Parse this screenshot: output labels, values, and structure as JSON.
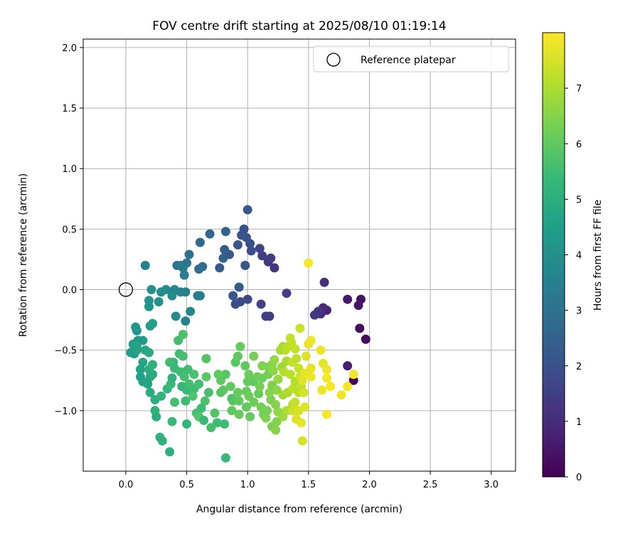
{
  "chart_data": {
    "type": "scatter",
    "title": "FOV centre drift starting at 2025/08/10 01:19:14",
    "xlabel": "Angular distance from reference (arcmin)",
    "ylabel": "Rotation from reference (arcmin)",
    "xlim": [
      -0.35,
      3.2
    ],
    "ylim": [
      -1.5,
      2.07
    ],
    "x_ticks": [
      0.0,
      0.5,
      1.0,
      1.5,
      2.0,
      2.5,
      3.0
    ],
    "x_tick_labels": [
      "0.0",
      "0.5",
      "1.0",
      "1.5",
      "2.0",
      "2.5",
      "3.0"
    ],
    "y_ticks": [
      -1.0,
      -0.5,
      0.0,
      0.5,
      1.0,
      1.5,
      2.0
    ],
    "y_tick_labels": [
      "−1.0",
      "−0.5",
      "0.0",
      "0.5",
      "1.0",
      "1.5",
      "2.0"
    ],
    "grid": true,
    "legend": {
      "position": "top-right",
      "entries": [
        "Reference platepar"
      ]
    },
    "reference_point": {
      "x": 0.0,
      "y": 0.0
    },
    "colorbar": {
      "label": "Hours from first FF file",
      "colormap": "viridis",
      "range": [
        0,
        8
      ],
      "ticks": [
        0,
        1,
        2,
        3,
        4,
        5,
        6,
        7
      ],
      "tick_labels": [
        "0",
        "1",
        "2",
        "3",
        "4",
        "5",
        "6",
        "7"
      ]
    },
    "points": [
      [
        1.87,
        -0.75,
        0.1
      ],
      [
        1.97,
        -0.41,
        0.2
      ],
      [
        1.92,
        -0.32,
        0.3
      ],
      [
        1.93,
        -0.08,
        0.4
      ],
      [
        1.91,
        -0.13,
        0.5
      ],
      [
        1.82,
        -0.08,
        0.6
      ],
      [
        1.82,
        -0.63,
        0.7
      ],
      [
        1.65,
        -0.17,
        0.8
      ],
      [
        1.62,
        -0.15,
        0.9
      ],
      [
        1.6,
        -0.2,
        1.0
      ],
      [
        1.63,
        0.06,
        1.1
      ],
      [
        1.58,
        -0.18,
        1.2
      ],
      [
        1.55,
        -0.21,
        1.3
      ],
      [
        1.18,
        -0.22,
        1.4
      ],
      [
        1.15,
        -0.22,
        1.5
      ],
      [
        1.11,
        -0.12,
        1.6
      ],
      [
        1.0,
        -0.08,
        1.7
      ],
      [
        0.94,
        -0.1,
        1.8
      ],
      [
        0.9,
        -0.12,
        1.9
      ],
      [
        1.32,
        -0.03,
        1.5
      ],
      [
        1.22,
        0.18,
        1.2
      ],
      [
        1.17,
        0.23,
        1.3
      ],
      [
        1.19,
        0.26,
        1.4
      ],
      [
        1.12,
        0.28,
        1.5
      ],
      [
        1.1,
        0.34,
        1.6
      ],
      [
        1.03,
        0.32,
        1.8
      ],
      [
        1.02,
        0.38,
        1.9
      ],
      [
        0.99,
        0.43,
        2.0
      ],
      [
        0.95,
        0.45,
        2.1
      ],
      [
        0.97,
        0.5,
        2.0
      ],
      [
        1.0,
        0.66,
        2.2
      ],
      [
        0.92,
        0.37,
        2.1
      ],
      [
        0.85,
        0.29,
        2.2
      ],
      [
        0.81,
        0.33,
        2.3
      ],
      [
        0.8,
        0.26,
        2.4
      ],
      [
        0.77,
        0.18,
        2.3
      ],
      [
        0.82,
        0.48,
        2.5
      ],
      [
        0.98,
        0.2,
        2.1
      ],
      [
        0.93,
        0.02,
        2.3
      ],
      [
        0.88,
        -0.05,
        2.2
      ],
      [
        0.69,
        0.46,
        2.6
      ],
      [
        0.61,
        0.39,
        2.7
      ],
      [
        0.63,
        0.19,
        2.8
      ],
      [
        0.6,
        0.17,
        2.9
      ],
      [
        0.52,
        0.29,
        3.0
      ],
      [
        0.5,
        0.22,
        3.1
      ],
      [
        0.47,
        0.18,
        3.2
      ],
      [
        0.48,
        0.12,
        3.3
      ],
      [
        0.42,
        0.2,
        3.1
      ],
      [
        0.45,
        0.2,
        3.2
      ],
      [
        0.61,
        -0.05,
        3.3
      ],
      [
        0.59,
        -0.05,
        3.4
      ],
      [
        0.49,
        -0.02,
        3.5
      ],
      [
        0.45,
        -0.02,
        3.6
      ],
      [
        0.4,
        0.0,
        3.7
      ],
      [
        0.33,
        0.0,
        3.8
      ],
      [
        0.29,
        -0.02,
        3.9
      ],
      [
        0.21,
        0.0,
        4.0
      ],
      [
        0.19,
        -0.09,
        4.1
      ],
      [
        0.19,
        -0.14,
        4.2
      ],
      [
        0.27,
        -0.1,
        4.0
      ],
      [
        0.38,
        -0.05,
        3.9
      ],
      [
        0.41,
        -0.22,
        3.8
      ],
      [
        0.49,
        -0.26,
        3.6
      ],
      [
        0.53,
        -0.18,
        3.7
      ],
      [
        0.16,
        0.2,
        3.5
      ],
      [
        0.08,
        -0.31,
        4.3
      ],
      [
        0.09,
        -0.34,
        4.2
      ],
      [
        0.2,
        -0.3,
        4.4
      ],
      [
        0.22,
        -0.28,
        4.5
      ],
      [
        0.14,
        -0.42,
        4.4
      ],
      [
        0.1,
        -0.42,
        4.3
      ],
      [
        0.06,
        -0.45,
        4.5
      ],
      [
        0.09,
        -0.47,
        4.6
      ],
      [
        0.04,
        -0.52,
        4.5
      ],
      [
        0.07,
        -0.53,
        4.4
      ],
      [
        0.09,
        -0.5,
        4.6
      ],
      [
        0.16,
        -0.5,
        4.7
      ],
      [
        0.19,
        -0.52,
        4.8
      ],
      [
        0.14,
        -0.6,
        4.7
      ],
      [
        0.12,
        -0.66,
        4.6
      ],
      [
        0.12,
        -0.72,
        4.5
      ],
      [
        0.14,
        -0.76,
        4.6
      ],
      [
        0.2,
        -0.72,
        4.8
      ],
      [
        0.18,
        -0.78,
        4.7
      ],
      [
        0.22,
        -0.7,
        4.9
      ],
      [
        0.19,
        -0.66,
        5.0
      ],
      [
        0.22,
        -0.62,
        5.1
      ],
      [
        0.2,
        -0.85,
        4.9
      ],
      [
        0.24,
        -0.91,
        5.0
      ],
      [
        0.24,
        -1.0,
        5.1
      ],
      [
        0.25,
        -1.05,
        5.0
      ],
      [
        0.28,
        -1.22,
        5.2
      ],
      [
        0.3,
        -1.25,
        5.1
      ],
      [
        0.36,
        -1.34,
        5.0
      ],
      [
        0.29,
        -0.88,
        5.2
      ],
      [
        0.34,
        -0.82,
        5.3
      ],
      [
        0.37,
        -0.78,
        5.4
      ],
      [
        0.38,
        -0.73,
        5.2
      ],
      [
        0.39,
        -0.6,
        5.3
      ],
      [
        0.36,
        -0.6,
        5.5
      ],
      [
        0.43,
        -0.42,
        5.6
      ],
      [
        0.47,
        -0.37,
        5.7
      ],
      [
        0.44,
        -0.53,
        5.5
      ],
      [
        0.47,
        -0.55,
        5.6
      ],
      [
        0.4,
        -0.65,
        5.4
      ],
      [
        0.45,
        -0.68,
        5.5
      ],
      [
        0.48,
        -0.72,
        5.6
      ],
      [
        0.46,
        -0.8,
        5.3
      ],
      [
        0.5,
        -0.83,
        5.4
      ],
      [
        0.52,
        -0.78,
        5.6
      ],
      [
        0.56,
        -0.7,
        5.7
      ],
      [
        0.51,
        -0.66,
        5.5
      ],
      [
        0.56,
        -0.82,
        5.5
      ],
      [
        0.6,
        -0.78,
        5.6
      ],
      [
        0.55,
        -0.88,
        5.7
      ],
      [
        0.49,
        -0.92,
        5.5
      ],
      [
        0.4,
        -0.93,
        5.6
      ],
      [
        0.38,
        -1.09,
        5.4
      ],
      [
        0.5,
        -1.11,
        5.3
      ],
      [
        0.58,
        -1.02,
        5.6
      ],
      [
        0.6,
        -1.05,
        5.8
      ],
      [
        0.65,
        -0.92,
        5.7
      ],
      [
        0.62,
        -0.98,
        5.5
      ],
      [
        0.68,
        -0.85,
        5.6
      ],
      [
        0.66,
        -0.57,
        5.8
      ],
      [
        0.66,
        -0.72,
        5.9
      ],
      [
        0.64,
        -1.08,
        5.4
      ],
      [
        0.75,
        -1.1,
        5.5
      ],
      [
        0.73,
        -1.02,
        5.8
      ],
      [
        0.78,
        -0.85,
        5.9
      ],
      [
        0.78,
        -0.75,
        6.0
      ],
      [
        0.82,
        -0.7,
        5.9
      ],
      [
        0.81,
        -1.11,
        5.5
      ],
      [
        0.7,
        -1.14,
        5.6
      ],
      [
        0.82,
        -1.39,
        5.4
      ],
      [
        0.76,
        -0.7,
        6.0
      ],
      [
        0.8,
        -0.83,
        5.9
      ],
      [
        0.86,
        -0.8,
        6.0
      ],
      [
        0.88,
        -0.92,
        5.9
      ],
      [
        0.87,
        -1.0,
        6.0
      ],
      [
        0.87,
        -0.9,
        5.8
      ],
      [
        0.93,
        -1.03,
        6.1
      ],
      [
        0.93,
        -0.92,
        6.0
      ],
      [
        0.92,
        -0.85,
        6.1
      ],
      [
        0.9,
        -0.6,
        5.9
      ],
      [
        0.92,
        -0.55,
        6.0
      ],
      [
        0.94,
        -0.47,
        6.1
      ],
      [
        0.98,
        -0.63,
        6.0
      ],
      [
        1.01,
        -0.7,
        6.2
      ],
      [
        1.0,
        -0.76,
        6.1
      ],
      [
        1.05,
        -0.76,
        6.0
      ],
      [
        1.08,
        -0.72,
        6.2
      ],
      [
        0.99,
        -0.84,
        6.1
      ],
      [
        1.01,
        -0.88,
        6.2
      ],
      [
        0.99,
        -0.97,
        6.0
      ],
      [
        1.02,
        -1.05,
        6.1
      ],
      [
        1.05,
        -0.93,
        6.2
      ],
      [
        1.09,
        -0.86,
        6.1
      ],
      [
        1.1,
        -0.8,
        6.3
      ],
      [
        1.12,
        -0.73,
        6.2
      ],
      [
        1.05,
        -0.55,
        6.3
      ],
      [
        1.12,
        -0.63,
        6.4
      ],
      [
        1.11,
        -0.97,
        6.3
      ],
      [
        1.13,
        -1.03,
        6.2
      ],
      [
        1.15,
        -1.06,
        6.4
      ],
      [
        1.16,
        -1.0,
        6.3
      ],
      [
        1.19,
        -0.91,
        6.4
      ],
      [
        1.18,
        -0.85,
        6.5
      ],
      [
        1.2,
        -0.79,
        6.4
      ],
      [
        1.17,
        -0.7,
        6.3
      ],
      [
        1.17,
        -0.64,
        6.4
      ],
      [
        1.2,
        -0.62,
        6.5
      ],
      [
        1.21,
        -0.67,
        6.6
      ],
      [
        1.2,
        -1.13,
        6.4
      ],
      [
        1.23,
        -1.16,
        6.5
      ],
      [
        1.24,
        -1.09,
        6.5
      ],
      [
        1.25,
        -1.01,
        6.6
      ],
      [
        1.23,
        -0.95,
        6.5
      ],
      [
        1.24,
        -0.83,
        6.6
      ],
      [
        1.25,
        -0.74,
        6.7
      ],
      [
        1.22,
        -0.58,
        6.7
      ],
      [
        1.28,
        -0.64,
        6.8
      ],
      [
        1.27,
        -0.5,
        6.9
      ],
      [
        1.29,
        -0.47,
        7.0
      ],
      [
        1.31,
        -0.5,
        7.1
      ],
      [
        1.33,
        -0.47,
        7.2
      ],
      [
        1.32,
        -0.59,
        7.0
      ],
      [
        1.3,
        -0.68,
        7.1
      ],
      [
        1.35,
        -0.7,
        7.2
      ],
      [
        1.29,
        -1.05,
        6.8
      ],
      [
        1.32,
        -1.0,
        7.0
      ],
      [
        1.29,
        -0.87,
        6.9
      ],
      [
        1.33,
        -0.85,
        7.0
      ],
      [
        1.37,
        -0.95,
        7.1
      ],
      [
        1.37,
        -0.82,
        7.2
      ],
      [
        1.39,
        -0.76,
        7.1
      ],
      [
        1.37,
        -0.6,
        7.3
      ],
      [
        1.36,
        -0.44,
        7.2
      ],
      [
        1.35,
        -0.4,
        7.3
      ],
      [
        1.43,
        -0.32,
        7.4
      ],
      [
        1.39,
        -0.49,
        7.3
      ],
      [
        1.4,
        -0.57,
        7.2
      ],
      [
        1.42,
        -0.65,
        7.3
      ],
      [
        1.43,
        -0.72,
        7.4
      ],
      [
        1.44,
        -0.8,
        7.3
      ],
      [
        1.42,
        -0.85,
        7.2
      ],
      [
        1.39,
        -0.93,
        7.3
      ],
      [
        1.37,
        -1.0,
        7.4
      ],
      [
        1.42,
        -1.0,
        7.5
      ],
      [
        1.4,
        -1.07,
        7.6
      ],
      [
        1.44,
        -1.1,
        7.7
      ],
      [
        1.45,
        -1.25,
        7.5
      ],
      [
        1.47,
        -0.97,
        7.6
      ],
      [
        1.46,
        -0.85,
        7.5
      ],
      [
        1.45,
        -0.75,
        7.6
      ],
      [
        1.47,
        -0.69,
        7.7
      ],
      [
        1.48,
        -0.55,
        7.6
      ],
      [
        1.5,
        -0.45,
        7.7
      ],
      [
        1.52,
        -0.42,
        7.8
      ],
      [
        1.52,
        -0.65,
        7.7
      ],
      [
        1.52,
        -0.72,
        7.8
      ],
      [
        1.5,
        0.22,
        7.9
      ],
      [
        1.6,
        -0.5,
        7.8
      ],
      [
        1.62,
        -0.61,
        7.7
      ],
      [
        1.65,
        -0.66,
        7.8
      ],
      [
        1.65,
        -0.73,
        7.9
      ],
      [
        1.61,
        -0.83,
        7.8
      ],
      [
        1.68,
        -0.8,
        7.9
      ],
      [
        1.65,
        -1.03,
        7.9
      ],
      [
        1.77,
        -0.87,
        7.8
      ],
      [
        1.82,
        -0.8,
        7.9
      ],
      [
        1.87,
        -0.7,
        7.9
      ]
    ]
  }
}
